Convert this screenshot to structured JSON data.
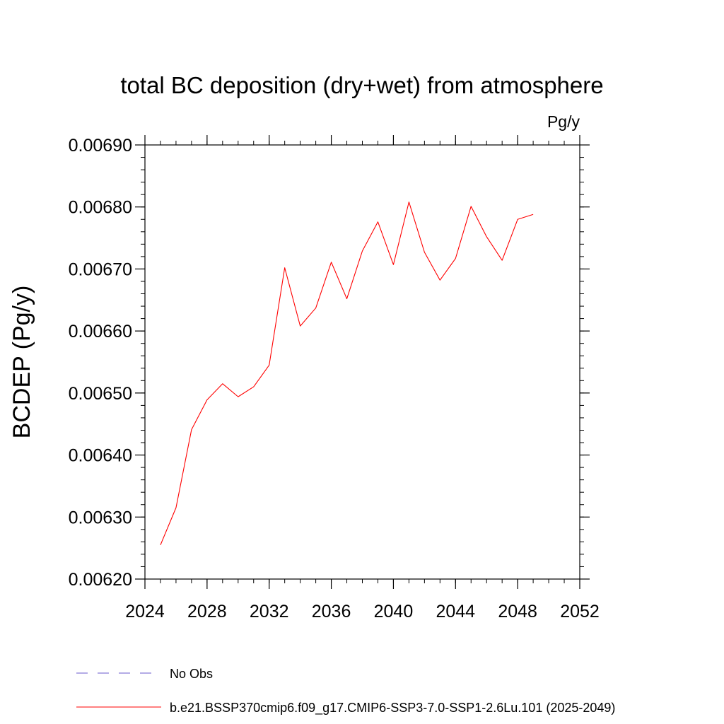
{
  "chart_data": {
    "type": "line",
    "title": "total BC deposition (dry+wet) from atmosphere",
    "units_label": "Pg/y",
    "ylabel": "BCDEP  (Pg/y)",
    "xlabel": "",
    "xlim": [
      2024,
      2052
    ],
    "ylim": [
      0.0062,
      0.0069
    ],
    "x_ticks": [
      2024,
      2028,
      2032,
      2036,
      2040,
      2044,
      2048,
      2052
    ],
    "x_tick_labels": [
      "2024",
      "2028",
      "2032",
      "2036",
      "2040",
      "2044",
      "2048",
      "2052"
    ],
    "x_minor_step": 1,
    "y_ticks": [
      0.0062,
      0.0063,
      0.0064,
      0.0065,
      0.0066,
      0.0067,
      0.0068,
      0.0069
    ],
    "y_tick_labels": [
      "0.00620",
      "0.00630",
      "0.00640",
      "0.00650",
      "0.00660",
      "0.00670",
      "0.00680",
      "0.00690"
    ],
    "y_minor_step": 2e-05,
    "grid": false,
    "series": [
      {
        "name": "b.e21.BSSP370cmip6.f09_g17.CMIP6-SSP3-7.0-SSP1-2.6Lu.101 (2025-2049)",
        "color": "#ff0000",
        "x": [
          2025,
          2026,
          2027,
          2028,
          2029,
          2030,
          2031,
          2032,
          2033,
          2034,
          2035,
          2036,
          2037,
          2038,
          2039,
          2040,
          2041,
          2042,
          2043,
          2044,
          2045,
          2046,
          2047,
          2048,
          2049
        ],
        "y": [
          0.006255,
          0.006315,
          0.006441,
          0.006489,
          0.006515,
          0.006494,
          0.00651,
          0.006545,
          0.006702,
          0.006608,
          0.006637,
          0.006711,
          0.006652,
          0.006729,
          0.006776,
          0.006707,
          0.006808,
          0.006727,
          0.006682,
          0.006717,
          0.006801,
          0.006752,
          0.006714,
          0.00678,
          0.006788
        ]
      }
    ],
    "legend": {
      "placement": "bottom",
      "entries": [
        {
          "label": "No Obs",
          "color": "#6a5acd",
          "style": "dashed"
        },
        {
          "label": "b.e21.BSSP370cmip6.f09_g17.CMIP6-SSP3-7.0-SSP1-2.6Lu.101 (2025-2049)",
          "color": "#ff0000",
          "style": "solid"
        }
      ]
    }
  }
}
